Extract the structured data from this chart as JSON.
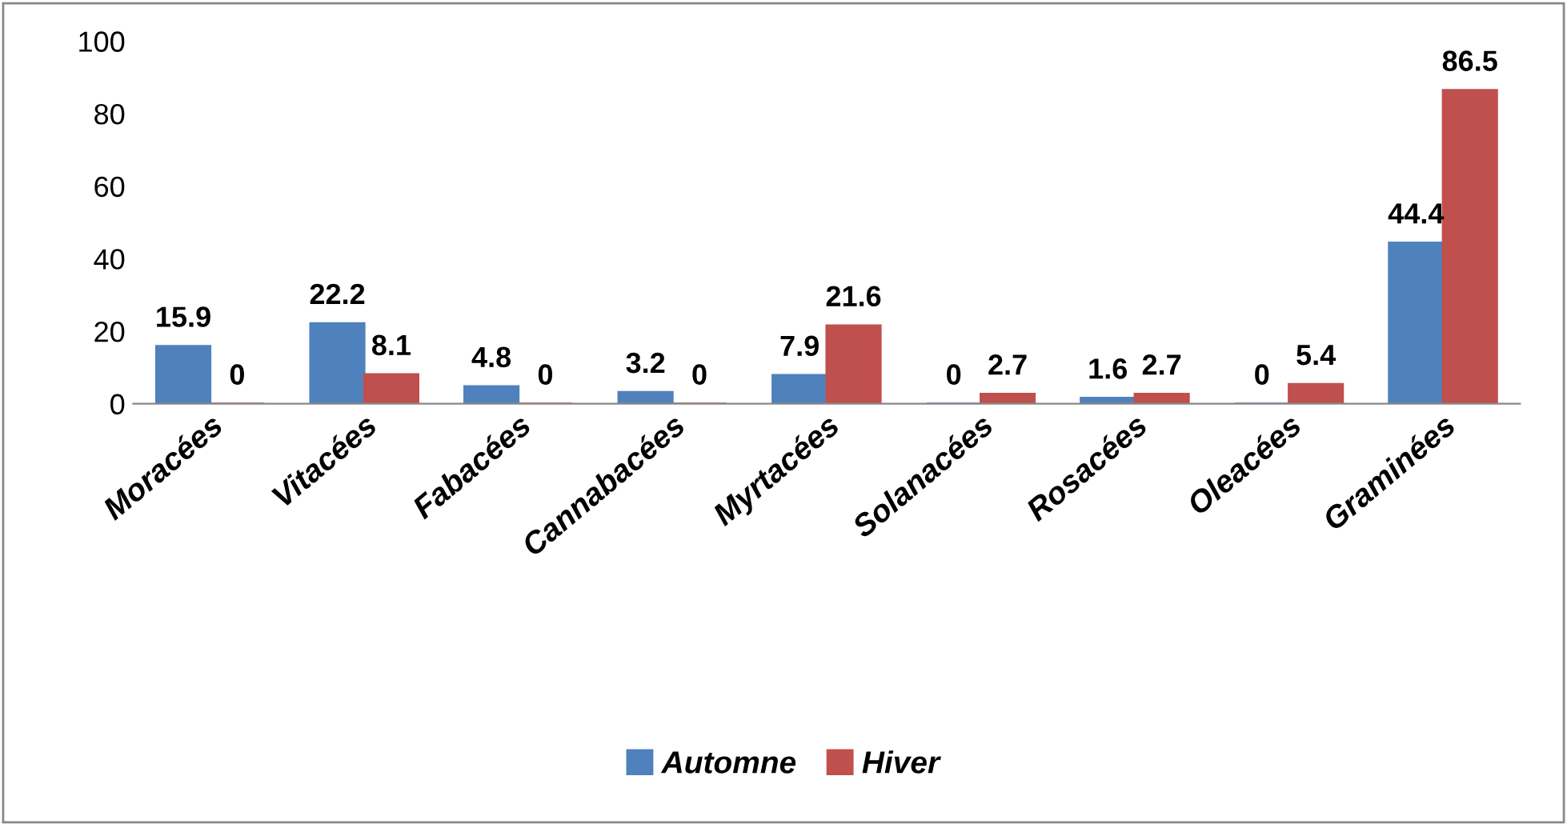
{
  "chart_data": {
    "type": "bar",
    "categories": [
      "Moracées",
      "Vitacées",
      "Fabacées",
      "Cannabacées",
      "Myrtacées",
      "Solanacées",
      "Rosacées",
      "Oleacées",
      "Graminées"
    ],
    "series": [
      {
        "name": "Automne",
        "color": "#4f81bd",
        "values": [
          15.9,
          22.2,
          4.8,
          3.2,
          7.9,
          0,
          1.6,
          0,
          44.4
        ]
      },
      {
        "name": "Hiver",
        "color": "#c0504d",
        "values": [
          0,
          8.1,
          0,
          0,
          21.6,
          2.7,
          2.7,
          5.4,
          86.5
        ]
      }
    ],
    "ylim": [
      0,
      100
    ],
    "yticks": [
      0,
      20,
      40,
      60,
      80,
      100
    ],
    "grid": false,
    "legend": "bottom",
    "data_labels": true
  }
}
